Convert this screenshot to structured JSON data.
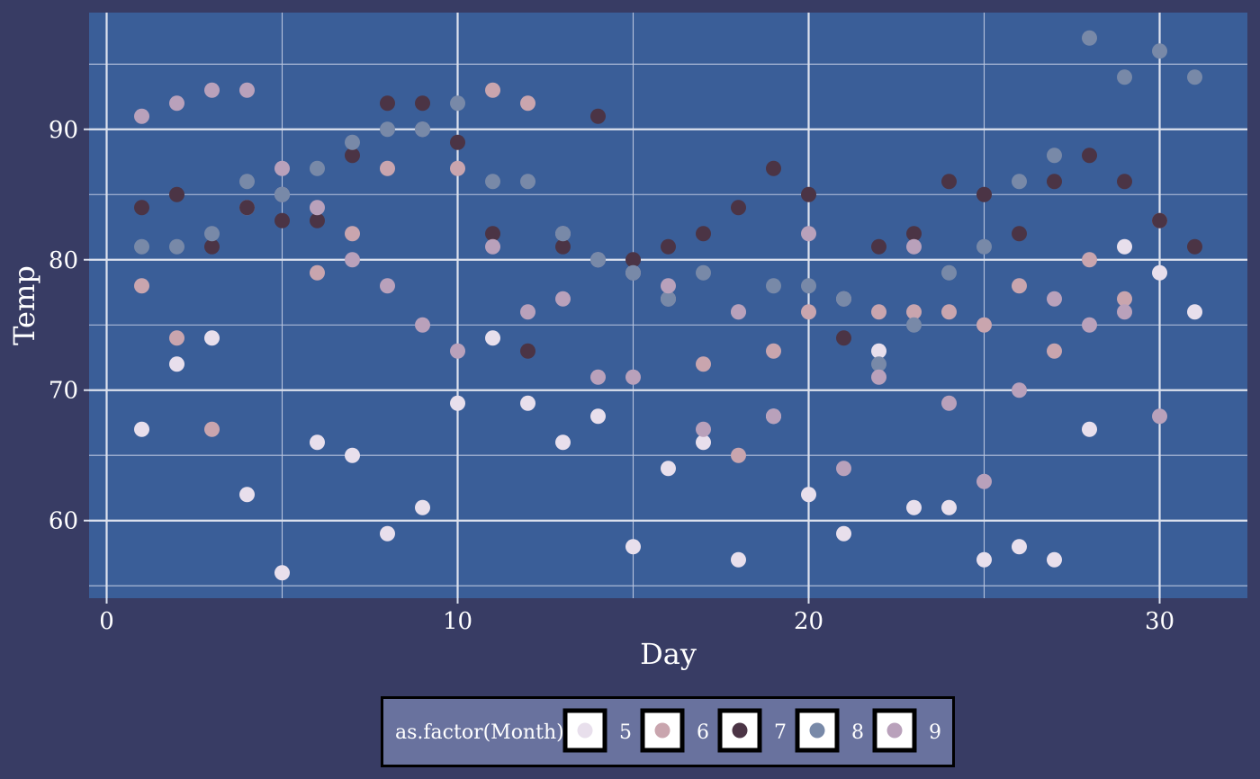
{
  "chart_data": {
    "type": "scatter",
    "xlabel": "Day",
    "ylabel": "Temp",
    "xlim": [
      -0.5,
      32.5
    ],
    "ylim": [
      54.05,
      98.95
    ],
    "x_ticks": [
      0,
      10,
      20,
      30
    ],
    "y_ticks": [
      60,
      70,
      80,
      90
    ],
    "grid": true,
    "legend": {
      "title": "as.factor(Month)",
      "position": "bottom",
      "entries": [
        "5",
        "6",
        "7",
        "8",
        "9"
      ]
    },
    "colors": {
      "background": "#383c64",
      "panel": "#3a5e98",
      "grid_major": "#dde2ee",
      "grid_minor": "#b8c4de",
      "legend_bg": "#69729e",
      "5": "#e8dfec",
      "6": "#c9a5ae",
      "7": "#4b3445",
      "8": "#7889a8",
      "9": "#b9a1bb"
    },
    "series": [
      {
        "name": "5",
        "points": [
          [
            1,
            67
          ],
          [
            2,
            72
          ],
          [
            3,
            74
          ],
          [
            4,
            62
          ],
          [
            5,
            56
          ],
          [
            6,
            66
          ],
          [
            7,
            65
          ],
          [
            8,
            59
          ],
          [
            9,
            61
          ],
          [
            10,
            69
          ],
          [
            11,
            74
          ],
          [
            12,
            69
          ],
          [
            13,
            66
          ],
          [
            14,
            68
          ],
          [
            15,
            58
          ],
          [
            16,
            64
          ],
          [
            17,
            66
          ],
          [
            18,
            57
          ],
          [
            19,
            68
          ],
          [
            20,
            62
          ],
          [
            21,
            59
          ],
          [
            22,
            73
          ],
          [
            23,
            61
          ],
          [
            24,
            61
          ],
          [
            25,
            57
          ],
          [
            26,
            58
          ],
          [
            27,
            57
          ],
          [
            28,
            67
          ],
          [
            29,
            81
          ],
          [
            30,
            79
          ],
          [
            31,
            76
          ]
        ]
      },
      {
        "name": "6",
        "points": [
          [
            1,
            78
          ],
          [
            2,
            74
          ],
          [
            3,
            67
          ],
          [
            4,
            84
          ],
          [
            5,
            85
          ],
          [
            6,
            79
          ],
          [
            7,
            82
          ],
          [
            8,
            87
          ],
          [
            9,
            90
          ],
          [
            10,
            87
          ],
          [
            11,
            93
          ],
          [
            12,
            92
          ],
          [
            13,
            82
          ],
          [
            14,
            80
          ],
          [
            15,
            79
          ],
          [
            16,
            77
          ],
          [
            17,
            72
          ],
          [
            18,
            65
          ],
          [
            19,
            73
          ],
          [
            20,
            76
          ],
          [
            21,
            77
          ],
          [
            22,
            76
          ],
          [
            23,
            76
          ],
          [
            24,
            76
          ],
          [
            25,
            75
          ],
          [
            26,
            78
          ],
          [
            27,
            73
          ],
          [
            28,
            80
          ],
          [
            29,
            77
          ],
          [
            30,
            83
          ]
        ]
      },
      {
        "name": "7",
        "points": [
          [
            1,
            84
          ],
          [
            2,
            85
          ],
          [
            3,
            81
          ],
          [
            4,
            84
          ],
          [
            5,
            83
          ],
          [
            6,
            83
          ],
          [
            7,
            88
          ],
          [
            8,
            92
          ],
          [
            9,
            92
          ],
          [
            10,
            89
          ],
          [
            11,
            82
          ],
          [
            12,
            73
          ],
          [
            13,
            81
          ],
          [
            14,
            91
          ],
          [
            15,
            80
          ],
          [
            16,
            81
          ],
          [
            17,
            82
          ],
          [
            18,
            84
          ],
          [
            19,
            87
          ],
          [
            20,
            85
          ],
          [
            21,
            74
          ],
          [
            22,
            81
          ],
          [
            23,
            82
          ],
          [
            24,
            86
          ],
          [
            25,
            85
          ],
          [
            26,
            82
          ],
          [
            27,
            86
          ],
          [
            28,
            88
          ],
          [
            29,
            86
          ],
          [
            30,
            83
          ],
          [
            31,
            81
          ]
        ]
      },
      {
        "name": "8",
        "points": [
          [
            1,
            81
          ],
          [
            2,
            81
          ],
          [
            3,
            82
          ],
          [
            4,
            86
          ],
          [
            5,
            85
          ],
          [
            6,
            87
          ],
          [
            7,
            89
          ],
          [
            8,
            90
          ],
          [
            9,
            90
          ],
          [
            10,
            92
          ],
          [
            11,
            86
          ],
          [
            12,
            86
          ],
          [
            13,
            82
          ],
          [
            14,
            80
          ],
          [
            15,
            79
          ],
          [
            16,
            77
          ],
          [
            17,
            79
          ],
          [
            18,
            76
          ],
          [
            19,
            78
          ],
          [
            20,
            78
          ],
          [
            21,
            77
          ],
          [
            22,
            72
          ],
          [
            23,
            75
          ],
          [
            24,
            79
          ],
          [
            25,
            81
          ],
          [
            26,
            86
          ],
          [
            27,
            88
          ],
          [
            28,
            97
          ],
          [
            29,
            94
          ],
          [
            30,
            96
          ],
          [
            31,
            94
          ]
        ]
      },
      {
        "name": "9",
        "points": [
          [
            1,
            91
          ],
          [
            2,
            92
          ],
          [
            3,
            93
          ],
          [
            4,
            93
          ],
          [
            5,
            87
          ],
          [
            6,
            84
          ],
          [
            7,
            80
          ],
          [
            8,
            78
          ],
          [
            9,
            75
          ],
          [
            10,
            73
          ],
          [
            11,
            81
          ],
          [
            12,
            76
          ],
          [
            13,
            77
          ],
          [
            14,
            71
          ],
          [
            15,
            71
          ],
          [
            16,
            78
          ],
          [
            17,
            67
          ],
          [
            18,
            76
          ],
          [
            19,
            68
          ],
          [
            20,
            82
          ],
          [
            21,
            64
          ],
          [
            22,
            71
          ],
          [
            23,
            81
          ],
          [
            24,
            69
          ],
          [
            25,
            63
          ],
          [
            26,
            70
          ],
          [
            27,
            77
          ],
          [
            28,
            75
          ],
          [
            29,
            76
          ],
          [
            30,
            68
          ]
        ]
      }
    ]
  }
}
